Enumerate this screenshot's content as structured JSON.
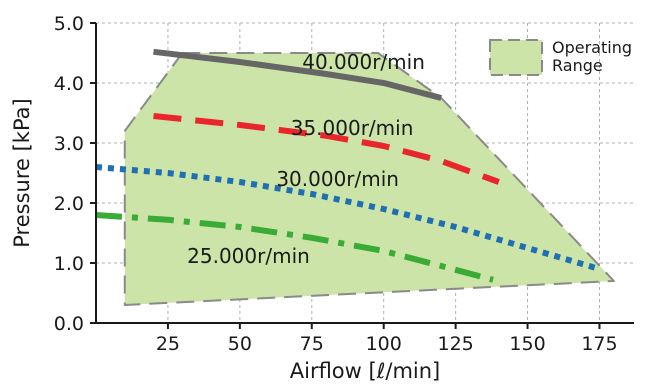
{
  "chart_data": {
    "type": "line",
    "xlabel": "Airflow [ℓ/min]",
    "ylabel": "Pressure [kPa]",
    "xlim": [
      0,
      187
    ],
    "ylim": [
      0,
      5.0
    ],
    "x_ticks": [
      25,
      50,
      75,
      100,
      125,
      150,
      175
    ],
    "x_tick_labels": [
      "25",
      "50",
      "75",
      "100",
      "125",
      "150",
      "175"
    ],
    "y_ticks": [
      0,
      1,
      2,
      3,
      4,
      5
    ],
    "y_tick_labels": [
      "0.0",
      "1.0",
      "2.0",
      "3.0",
      "4.0",
      "5.0"
    ],
    "grid": true,
    "legend": {
      "label": "Operating Range",
      "lines": [
        "Operating",
        "Range"
      ],
      "position": "top-right",
      "color": "#cce4a8"
    },
    "operating_range": {
      "color": "#cce4a8",
      "border_color": "#8a8a8a",
      "points": [
        [
          30,
          4.5
        ],
        [
          98,
          4.5
        ],
        [
          120,
          3.75
        ],
        [
          180,
          0.7
        ],
        [
          10,
          0.3
        ],
        [
          10,
          3.2
        ]
      ]
    },
    "series": [
      {
        "name": "40.000r/min",
        "color": "#666666",
        "dash": "solid",
        "label_at": [
          93,
          4.35
        ],
        "points": [
          [
            20,
            4.52
          ],
          [
            50,
            4.35
          ],
          [
            80,
            4.15
          ],
          [
            100,
            4.0
          ],
          [
            120,
            3.75
          ]
        ]
      },
      {
        "name": "35.000r/min",
        "color": "#e8262c",
        "dash": "long",
        "label_at": [
          89,
          3.25
        ],
        "points": [
          [
            20,
            3.45
          ],
          [
            50,
            3.3
          ],
          [
            80,
            3.12
          ],
          [
            100,
            2.95
          ],
          [
            120,
            2.7
          ],
          [
            140,
            2.35
          ]
        ]
      },
      {
        "name": "30.000r/min",
        "color": "#1f6fb5",
        "dash": "dots",
        "label_at": [
          84,
          2.4
        ],
        "points": [
          [
            0,
            2.6
          ],
          [
            25,
            2.5
          ],
          [
            50,
            2.35
          ],
          [
            75,
            2.15
          ],
          [
            100,
            1.9
          ],
          [
            125,
            1.6
          ],
          [
            150,
            1.25
          ],
          [
            175,
            0.9
          ]
        ]
      },
      {
        "name": "25.000r/min",
        "color": "#3aab35",
        "dash": "dashdot",
        "label_at": [
          53,
          1.12
        ],
        "points": [
          [
            0,
            1.8
          ],
          [
            25,
            1.72
          ],
          [
            50,
            1.6
          ],
          [
            75,
            1.42
          ],
          [
            100,
            1.2
          ],
          [
            120,
            0.95
          ],
          [
            138,
            0.72
          ]
        ]
      }
    ]
  }
}
